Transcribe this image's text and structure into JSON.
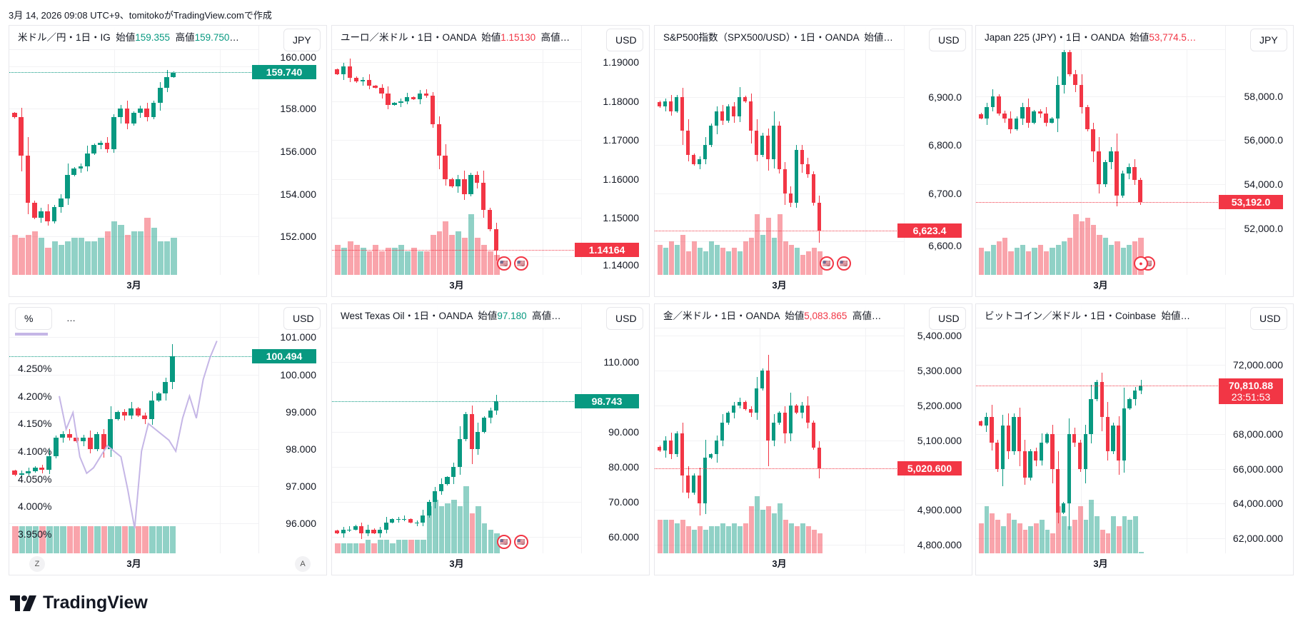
{
  "caption": "3月 14, 2026 09:08 UTC+9、tomitokoがTradingView.comで作成",
  "brand": "TradingView",
  "time_label": "3月",
  "colors": {
    "up": "#089981",
    "down": "#f23645",
    "study": "#c5b6e6"
  },
  "panels": [
    {
      "legend": [
        {
          "t": "米ドル／円・1日・IG  始値"
        },
        {
          "t": "159.355",
          "c": "up"
        },
        {
          "t": "  高値"
        },
        {
          "t": "159.750",
          "c": "up"
        },
        {
          "t": "…"
        }
      ],
      "currency": "JPY",
      "range": [
        150.2,
        160.7
      ],
      "ticks": [
        {
          "v": 152,
          "l": "152.000"
        },
        {
          "v": 154,
          "l": "154.000"
        },
        {
          "v": 156,
          "l": "156.000"
        },
        {
          "v": 158,
          "l": "158.000"
        },
        {
          "v": 160,
          "l": "160.000"
        }
      ],
      "last": {
        "v": 159.74,
        "l": "159.740",
        "c": "up"
      },
      "closes": [
        157.6,
        155.8,
        153.6,
        152.9,
        153.2,
        152.7,
        153.4,
        153.8,
        154.9,
        155.2,
        155.3,
        155.9,
        156.3,
        156.4,
        156.1,
        157.6,
        158.0,
        157.3,
        157.8,
        158.0,
        157.6,
        158.3,
        159.0,
        159.5,
        159.7
      ],
      "volumes": [
        0.6,
        0.55,
        0.6,
        0.65,
        0.55,
        0.4,
        0.5,
        0.45,
        0.5,
        0.55,
        0.55,
        0.5,
        0.5,
        0.55,
        0.65,
        0.8,
        0.75,
        0.6,
        0.65,
        0.65,
        0.85,
        0.7,
        0.5,
        0.5,
        0.55
      ],
      "flags": 0
    },
    {
      "legend": [
        {
          "t": "ユーロ／米ドル・1日・OANDA  始値"
        },
        {
          "t": "1.15130",
          "c": "down"
        },
        {
          "t": "  高値…"
        }
      ],
      "currency": "USD",
      "range": [
        1.1353,
        1.1928
      ],
      "ticks": [
        {
          "v": 1.14,
          "l": "1.14000"
        },
        {
          "v": 1.15,
          "l": "1.15000"
        },
        {
          "v": 1.16,
          "l": "1.16000"
        },
        {
          "v": 1.17,
          "l": "1.17000"
        },
        {
          "v": 1.18,
          "l": "1.18000"
        },
        {
          "v": 1.19,
          "l": "1.19000"
        }
      ],
      "last": {
        "v": 1.14164,
        "l": "1.14164",
        "c": "down"
      },
      "closes": [
        1.187,
        1.189,
        1.186,
        1.185,
        1.1855,
        1.184,
        1.1835,
        1.182,
        1.179,
        1.1795,
        1.18,
        1.181,
        1.1805,
        1.182,
        1.1815,
        1.174,
        1.166,
        1.16,
        1.158,
        1.16,
        1.156,
        1.161,
        1.159,
        1.152,
        1.147,
        1.1416
      ],
      "volumes": [
        0.45,
        0.4,
        0.5,
        0.45,
        0.4,
        0.35,
        0.45,
        0.35,
        0.4,
        0.4,
        0.45,
        0.35,
        0.4,
        0.35,
        0.35,
        0.6,
        0.65,
        0.8,
        0.6,
        0.65,
        0.55,
        0.9,
        0.55,
        0.45,
        0.35,
        0.3
      ],
      "flags": 2
    },
    {
      "legend": [
        {
          "t": "S&P500指数（SPX500/USD）・1日・OANDA  始値…"
        }
      ],
      "currency": "USD",
      "range": [
        6531,
        6994
      ],
      "ticks": [
        {
          "v": 6600,
          "l": "6,600.0"
        },
        {
          "v": 6700,
          "l": "6,700.0"
        },
        {
          "v": 6800,
          "l": "6,800.0"
        },
        {
          "v": 6900,
          "l": "6,900.0"
        }
      ],
      "last": {
        "v": 6623.4,
        "l": "6,623.4",
        "c": "down"
      },
      "closes": [
        6880,
        6890,
        6870,
        6900,
        6830,
        6780,
        6760,
        6770,
        6800,
        6840,
        6870,
        6850,
        6880,
        6860,
        6900,
        6890,
        6830,
        6780,
        6820,
        6770,
        6840,
        6750,
        6700,
        6680,
        6790,
        6760,
        6740,
        6680,
        6623
      ],
      "volumes": [
        0.45,
        0.4,
        0.5,
        0.45,
        0.6,
        0.35,
        0.5,
        0.4,
        0.35,
        0.5,
        0.45,
        0.4,
        0.35,
        0.4,
        0.35,
        0.5,
        0.55,
        0.9,
        0.6,
        0.85,
        0.55,
        0.9,
        0.5,
        0.45,
        0.4,
        0.3,
        0.35,
        0.4,
        0.35
      ],
      "flags": 2
    },
    {
      "legend": [
        {
          "t": "Japan 225 (JPY)・1日・OANDA  始値"
        },
        {
          "t": "53,774.5…",
          "c": "down"
        }
      ],
      "currency": "JPY",
      "range": [
        49900,
        60025
      ],
      "ticks": [
        {
          "v": 52000,
          "l": "52,000.0"
        },
        {
          "v": 54000,
          "l": "54,000.0"
        },
        {
          "v": 56000,
          "l": "56,000.0"
        },
        {
          "v": 58000,
          "l": "58,000.0"
        }
      ],
      "last": {
        "v": 53192,
        "l": "53,192.0",
        "c": "down"
      },
      "closes": [
        57000,
        57500,
        58000,
        57200,
        57000,
        56500,
        57000,
        57500,
        56800,
        57300,
        57200,
        56800,
        57000,
        58500,
        60000,
        59000,
        58500,
        57500,
        56500,
        55500,
        54000,
        55000,
        55500,
        53500,
        54500,
        54800,
        54200,
        53192
      ],
      "volumes": [
        0.4,
        0.35,
        0.45,
        0.5,
        0.55,
        0.35,
        0.4,
        0.45,
        0.35,
        0.4,
        0.45,
        0.35,
        0.4,
        0.45,
        0.5,
        0.55,
        0.9,
        0.8,
        0.85,
        0.75,
        0.6,
        0.55,
        0.45,
        0.5,
        0.4,
        0.45,
        0.5,
        0.55
      ],
      "flags": 1
    },
    {
      "legend_special": {
        "unit": "%",
        "dots": "…"
      },
      "currency": "USD",
      "range": [
        95.2,
        101.2
      ],
      "ticks": [
        {
          "v": 96,
          "l": "96.000"
        },
        {
          "v": 97,
          "l": "97.000"
        },
        {
          "v": 98,
          "l": "98.000"
        },
        {
          "v": 99,
          "l": "99.000"
        },
        {
          "v": 100,
          "l": "100.000"
        },
        {
          "v": 101,
          "l": "101.000"
        }
      ],
      "last": {
        "v": 100.494,
        "l": "100.494",
        "c": "up"
      },
      "closes": [
        97.3,
        97.35,
        97.4,
        97.5,
        97.45,
        97.8,
        98.3,
        98.4,
        98.3,
        98.2,
        98.3,
        98.0,
        98.4,
        98.0,
        98.8,
        99.0,
        98.9,
        99.1,
        98.9,
        98.8,
        99.3,
        99.5,
        99.8,
        100.5
      ],
      "left_range": [
        3.915,
        4.32
      ],
      "left_ticks": [
        {
          "v": 3.95,
          "l": "3.950%"
        },
        {
          "v": 4.0,
          "l": "4.000%"
        },
        {
          "v": 4.05,
          "l": "4.050%"
        },
        {
          "v": 4.1,
          "l": "4.100%"
        },
        {
          "v": 4.15,
          "l": "4.150%"
        },
        {
          "v": 4.2,
          "l": "4.200%"
        },
        {
          "v": 4.25,
          "l": "4.250%"
        }
      ],
      "study_line": [
        4.2,
        4.14,
        4.17,
        4.09,
        4.06,
        4.07,
        4.09,
        4.11,
        4.1,
        4.09,
        4.03,
        3.96,
        4.1,
        4.15,
        4.14,
        4.13,
        4.12,
        4.1,
        4.16,
        4.2,
        4.16,
        4.23,
        4.27,
        4.3
      ],
      "buttons": {
        "left": "Z",
        "right": "A"
      },
      "flags": 0
    },
    {
      "legend": [
        {
          "t": "West Texas Oil・1日・OANDA  始値"
        },
        {
          "t": "97.180",
          "c": "up"
        },
        {
          "t": "  高値…"
        }
      ],
      "currency": "USD",
      "range": [
        55.2,
        119.2
      ],
      "ticks": [
        {
          "v": 60,
          "l": "60.000"
        },
        {
          "v": 70,
          "l": "70.000"
        },
        {
          "v": 80,
          "l": "80.000"
        },
        {
          "v": 90,
          "l": "90.000"
        },
        {
          "v": 110,
          "l": "110.000"
        }
      ],
      "last": {
        "v": 98.743,
        "l": "98.743",
        "c": "up"
      },
      "closes": [
        61,
        62,
        62,
        63,
        61,
        62,
        61,
        62,
        64,
        65,
        65,
        65,
        64,
        64,
        66,
        70,
        73,
        75,
        77,
        80,
        88,
        95,
        85,
        90,
        94,
        96,
        98.7
      ],
      "volumes": [
        0.15,
        0.15,
        0.15,
        0.15,
        0.15,
        0.2,
        0.15,
        0.2,
        0.2,
        0.15,
        0.2,
        0.2,
        0.2,
        0.2,
        0.2,
        0.7,
        0.8,
        0.7,
        0.75,
        0.8,
        0.7,
        1.0,
        0.6,
        0.7,
        0.45,
        0.35,
        0.3
      ],
      "flags": 2
    },
    {
      "legend": [
        {
          "t": "金／米ドル・1日・OANDA  始値"
        },
        {
          "t": "5,083.865",
          "c": "down"
        },
        {
          "t": "  高値…"
        }
      ],
      "currency": "USD",
      "range": [
        4776,
        5417
      ],
      "ticks": [
        {
          "v": 4800,
          "l": "4,800.000"
        },
        {
          "v": 4900,
          "l": "4,900.000"
        },
        {
          "v": 5100,
          "l": "5,100.000"
        },
        {
          "v": 5200,
          "l": "5,200.000"
        },
        {
          "v": 5300,
          "l": "5,300.000"
        },
        {
          "v": 5400,
          "l": "5,400.000"
        }
      ],
      "last": {
        "v": 5020.6,
        "l": "5,020.600",
        "c": "down"
      },
      "closes": [
        5070,
        5100,
        5060,
        5120,
        5000,
        4950,
        5000,
        4920,
        5050,
        5060,
        5100,
        5150,
        5180,
        5200,
        5210,
        5190,
        5180,
        5250,
        5300,
        5100,
        5150,
        5180,
        5120,
        5200,
        5180,
        5200,
        5150,
        5080,
        5020
      ],
      "volumes": [
        0.5,
        0.5,
        0.5,
        0.45,
        0.5,
        0.4,
        0.35,
        0.4,
        0.35,
        0.4,
        0.4,
        0.45,
        0.4,
        0.45,
        0.4,
        0.45,
        0.7,
        0.85,
        0.65,
        0.7,
        0.6,
        0.75,
        0.5,
        0.45,
        0.4,
        0.45,
        0.4,
        0.35,
        0.3
      ],
      "flags": 0
    },
    {
      "legend": [
        {
          "t": "ビットコイン／米ドル・1日・Coinbase  始値…"
        }
      ],
      "currency": "USD",
      "range": [
        61143,
        74000
      ],
      "ticks": [
        {
          "v": 62000,
          "l": "62,000.000"
        },
        {
          "v": 64000,
          "l": "64,000.000"
        },
        {
          "v": 66000,
          "l": "66,000.000"
        },
        {
          "v": 68000,
          "l": "68,000.000"
        },
        {
          "v": 72000,
          "l": "72,000.000"
        }
      ],
      "last": {
        "v": 70810.88,
        "l": "70,810.88",
        "c": "down",
        "countdown": "23:51:53"
      },
      "closes": [
        68500,
        69000,
        67500,
        66000,
        68500,
        67000,
        69000,
        67000,
        65500,
        67000,
        66500,
        67500,
        68000,
        66000,
        63500,
        64000,
        68000,
        67500,
        66000,
        68000,
        70000,
        71000,
        69000,
        67000,
        68500,
        66500,
        69500,
        70000,
        70500,
        70810
      ],
      "volumes": [
        0.45,
        0.7,
        0.6,
        0.5,
        0.4,
        0.6,
        0.5,
        0.45,
        0.35,
        0.4,
        0.45,
        0.5,
        0.35,
        0.3,
        0.7,
        0.55,
        0.4,
        0.5,
        0.7,
        0.5,
        0.8,
        0.55,
        0.35,
        0.3,
        0.55,
        0.4,
        0.55,
        0.5,
        0.55,
        0.02
      ],
      "flags": 0
    }
  ]
}
